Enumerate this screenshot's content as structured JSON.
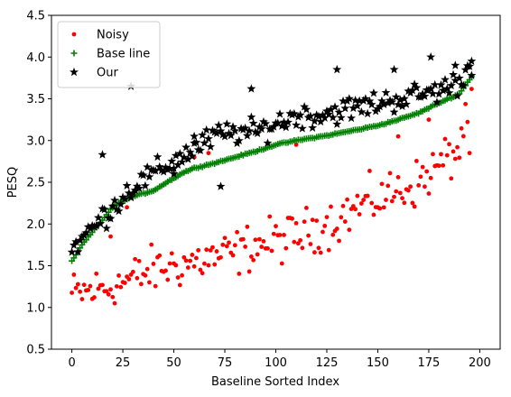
{
  "chart_data": {
    "type": "scatter",
    "title": "",
    "xlabel": "Baseline Sorted Index",
    "ylabel": "PESQ",
    "xlim": [
      -10,
      210
    ],
    "ylim": [
      0.5,
      4.5
    ],
    "xticks": [
      "0",
      "25",
      "50",
      "75",
      "100",
      "125",
      "150",
      "175",
      "200"
    ],
    "yticks": [
      "0.5",
      "1.0",
      "1.5",
      "2.0",
      "2.5",
      "3.0",
      "3.5",
      "4.0",
      "4.5"
    ],
    "grid": false,
    "legend_position": "upper-left",
    "n_points": 197,
    "series": [
      {
        "name": "Noisy",
        "marker": "dot",
        "color": "#ff0000",
        "anchors": [
          [
            0,
            1.15
          ],
          [
            10,
            1.2
          ],
          [
            20,
            1.25
          ],
          [
            30,
            1.35
          ],
          [
            40,
            1.45
          ],
          [
            50,
            1.5
          ],
          [
            60,
            1.55
          ],
          [
            70,
            1.6
          ],
          [
            80,
            1.65
          ],
          [
            90,
            1.75
          ],
          [
            100,
            1.8
          ],
          [
            110,
            1.85
          ],
          [
            120,
            1.95
          ],
          [
            130,
            2.05
          ],
          [
            140,
            2.2
          ],
          [
            150,
            2.3
          ],
          [
            160,
            2.4
          ],
          [
            170,
            2.5
          ],
          [
            180,
            2.7
          ],
          [
            190,
            2.9
          ],
          [
            197,
            3.8
          ]
        ],
        "notable_points": [
          [
            19,
            1.85
          ],
          [
            27,
            2.2
          ],
          [
            60,
            2.8
          ],
          [
            67,
            2.85
          ],
          [
            110,
            2.95
          ],
          [
            160,
            3.05
          ],
          [
            175,
            3.25
          ],
          [
            195,
            2.85
          ]
        ]
      },
      {
        "name": "Base line",
        "marker": "plus",
        "color": "#008000",
        "anchors": [
          [
            0,
            1.55
          ],
          [
            5,
            1.75
          ],
          [
            10,
            1.9
          ],
          [
            15,
            2.05
          ],
          [
            20,
            2.2
          ],
          [
            25,
            2.28
          ],
          [
            30,
            2.33
          ],
          [
            40,
            2.4
          ],
          [
            50,
            2.55
          ],
          [
            55,
            2.62
          ],
          [
            60,
            2.67
          ],
          [
            70,
            2.73
          ],
          [
            80,
            2.8
          ],
          [
            90,
            2.87
          ],
          [
            100,
            2.95
          ],
          [
            110,
            3.0
          ],
          [
            125,
            3.06
          ],
          [
            140,
            3.13
          ],
          [
            150,
            3.18
          ],
          [
            160,
            3.25
          ],
          [
            170,
            3.33
          ],
          [
            180,
            3.45
          ],
          [
            190,
            3.56
          ],
          [
            197,
            3.8
          ]
        ]
      },
      {
        "name": "Our",
        "marker": "star",
        "color": "#000000",
        "anchors": [
          [
            0,
            1.7
          ],
          [
            10,
            1.95
          ],
          [
            20,
            2.2
          ],
          [
            30,
            2.45
          ],
          [
            40,
            2.6
          ],
          [
            50,
            2.75
          ],
          [
            60,
            2.9
          ],
          [
            70,
            3.05
          ],
          [
            80,
            3.1
          ],
          [
            90,
            3.1
          ],
          [
            100,
            3.2
          ],
          [
            110,
            3.3
          ],
          [
            120,
            3.3
          ],
          [
            130,
            3.35
          ],
          [
            140,
            3.4
          ],
          [
            150,
            3.45
          ],
          [
            160,
            3.5
          ],
          [
            170,
            3.55
          ],
          [
            180,
            3.6
          ],
          [
            190,
            3.7
          ],
          [
            197,
            3.95
          ]
        ],
        "notable_points": [
          [
            15,
            2.83
          ],
          [
            29,
            3.65
          ],
          [
            50,
            2.6
          ],
          [
            60,
            3.05
          ],
          [
            73,
            2.45
          ],
          [
            88,
            3.62
          ],
          [
            130,
            3.85
          ],
          [
            158,
            3.85
          ],
          [
            176,
            4.0
          ],
          [
            188,
            3.9
          ],
          [
            196,
            3.95
          ]
        ]
      }
    ]
  }
}
